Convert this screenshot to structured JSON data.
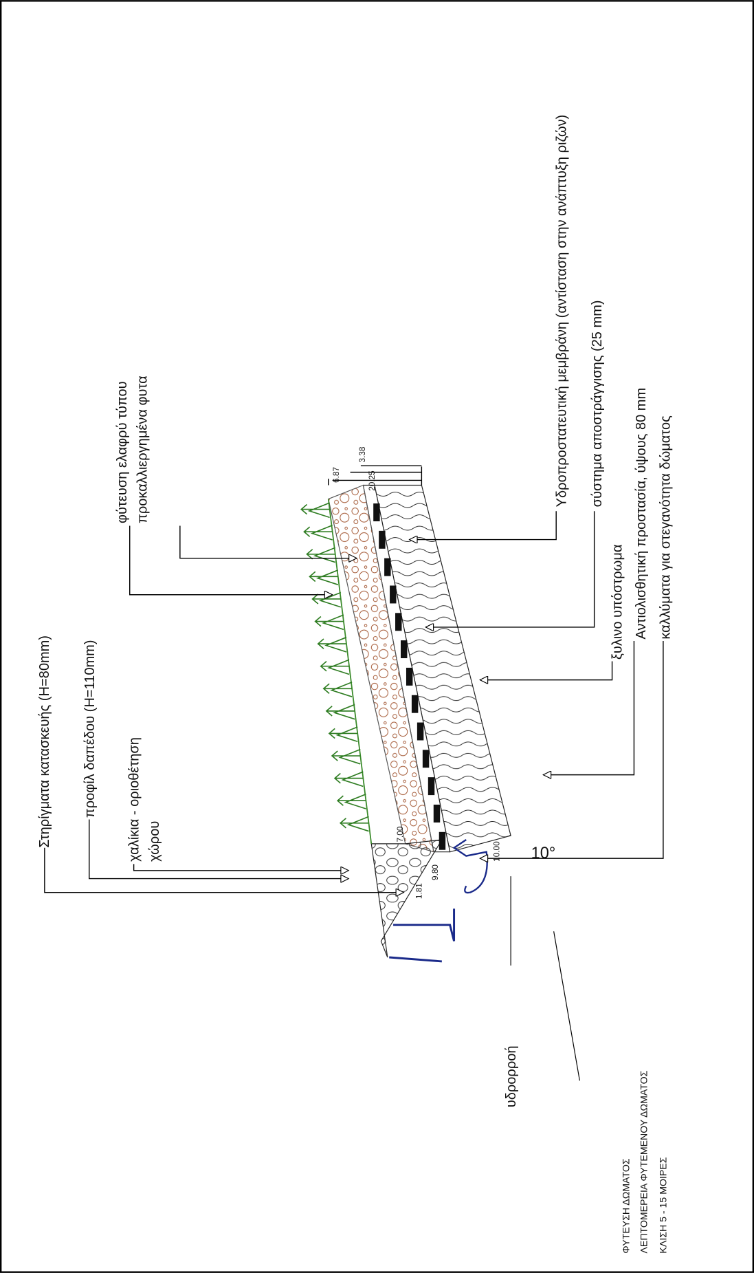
{
  "labels": {
    "supports": "Στηρίγματα κατασκευής (Η=80mm)",
    "floor_profile": "προφίλ δαπέδου (Η=110mm)",
    "gravel_1": "χαλίκια - οριοθέτηση",
    "gravel_2": "χώρου",
    "planting_1": "φύτευση ελαφρύ τύπου",
    "planting_2": "προκαλλιεργημένα φυτα",
    "membrane": "Υδροπροστατευτική μεμβράνη  (αντίσταση στην ανάπτυξη ριζών)",
    "drainage": "σύστημα αποστράγγισης (25 mm)",
    "wood_base": "ξυλινο υπόστρωμα",
    "anti_slip": "Αντιολισθητική προστασία, ύψους 80 mm",
    "coverings": "καλλύματα για στεγανότητα δώματος",
    "gutter": "υδρορροή",
    "angle": "10°"
  },
  "dimensions": [
    "6.87",
    "3.38",
    "20.25",
    "7.00",
    "9.80",
    "1.81",
    "10.00"
  ],
  "title_block": [
    "ΦΥΤΕΥΣΗ ΔΩΜΑΤΟΣ",
    "ΛΕΠΤΟΜΕΡΕΙΑ ΦΥΤΕΜΕΝΟΥ ΔΩΜΑΤΟΣ",
    "ΚΛΙΣΗ 5 - 15 ΜΟΙΡΕΣ"
  ]
}
